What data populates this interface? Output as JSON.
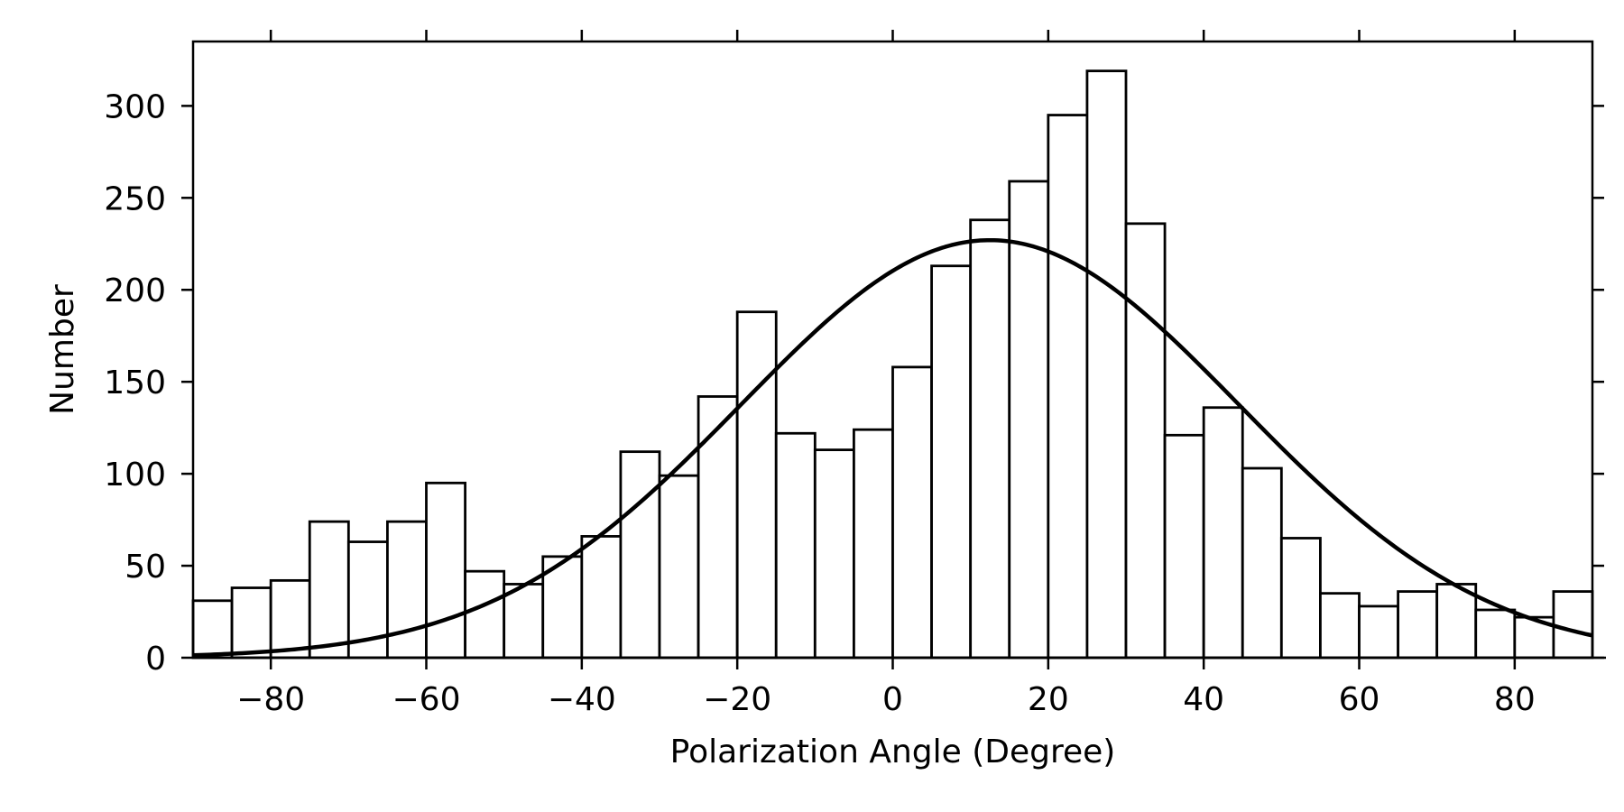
{
  "chart_data": {
    "type": "bar",
    "subtype": "histogram",
    "title": "",
    "xlabel": "Polarization Angle (Degree)",
    "ylabel": "Number",
    "xlim": [
      -90,
      90
    ],
    "ylim": [
      0,
      335
    ],
    "bin_width": 5,
    "bin_edges": [
      -90,
      -85,
      -80,
      -75,
      -70,
      -65,
      -60,
      -55,
      -50,
      -45,
      -40,
      -35,
      -30,
      -25,
      -20,
      -15,
      -10,
      -5,
      0,
      5,
      10,
      15,
      20,
      25,
      30,
      35,
      40,
      45,
      50,
      55,
      60,
      65,
      70,
      75,
      80,
      85,
      90
    ],
    "values": [
      31,
      38,
      42,
      74,
      63,
      74,
      95,
      47,
      40,
      55,
      66,
      112,
      99,
      142,
      188,
      122,
      113,
      124,
      158,
      213,
      238,
      259,
      295,
      319,
      236,
      121,
      136,
      103,
      65,
      35,
      28,
      36,
      40,
      26,
      22,
      36
    ],
    "fit_curve": {
      "type": "gaussian",
      "amplitude": 227,
      "mean": 12.5,
      "sigma": 32
    },
    "x_ticks": [
      {
        "value": -80,
        "label": "−80"
      },
      {
        "value": -60,
        "label": "−60"
      },
      {
        "value": -40,
        "label": "−40"
      },
      {
        "value": -20,
        "label": "−20"
      },
      {
        "value": 0,
        "label": "0"
      },
      {
        "value": 20,
        "label": "20"
      },
      {
        "value": 40,
        "label": "40"
      },
      {
        "value": 60,
        "label": "60"
      },
      {
        "value": 80,
        "label": "80"
      }
    ],
    "y_ticks": [
      {
        "value": 0,
        "label": "0"
      },
      {
        "value": 50,
        "label": "50"
      },
      {
        "value": 100,
        "label": "100"
      },
      {
        "value": 150,
        "label": "150"
      },
      {
        "value": 200,
        "label": "200"
      },
      {
        "value": 250,
        "label": "250"
      },
      {
        "value": 300,
        "label": "300"
      }
    ],
    "grid": false,
    "legend": "none",
    "colors": {
      "bar_fill": "#ffffff",
      "bar_edge": "#000000",
      "curve": "#000000",
      "axes": "#000000"
    }
  }
}
